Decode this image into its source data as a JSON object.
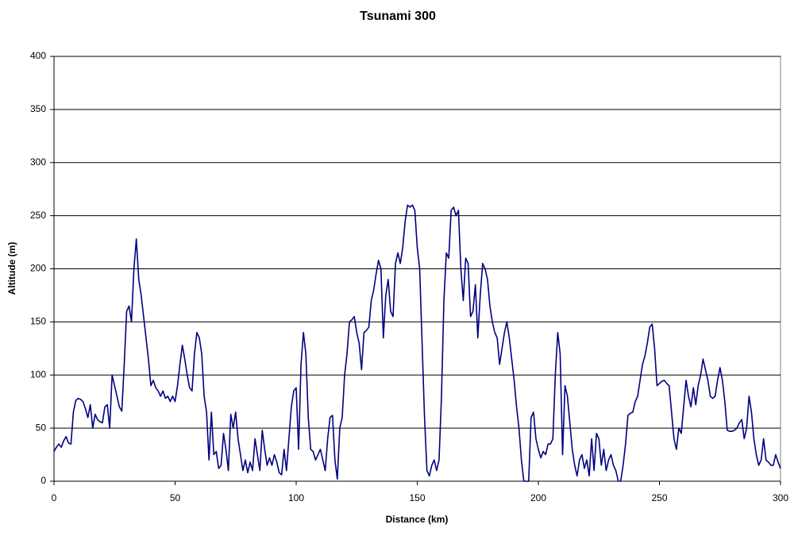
{
  "chart_data": {
    "type": "line",
    "title": "Tsunami 300",
    "x_label": "Distance (km)",
    "y_label": "Altitude (m)",
    "xlim": [
      0,
      300
    ],
    "xticks": [
      0,
      50,
      100,
      150,
      200,
      250,
      300
    ],
    "ylim": [
      0,
      400
    ],
    "yticks": [
      0,
      50,
      100,
      150,
      200,
      250,
      300,
      350,
      400
    ],
    "grid": true,
    "x": [
      0,
      1,
      2,
      3,
      4,
      5,
      6,
      7,
      8,
      9,
      10,
      11,
      12,
      13,
      14,
      15,
      16,
      17,
      18,
      19,
      20,
      21,
      22,
      23,
      24,
      25,
      26,
      27,
      28,
      29,
      30,
      31,
      32,
      33,
      34,
      35,
      36,
      37,
      38,
      39,
      40,
      41,
      42,
      43,
      44,
      45,
      46,
      47,
      48,
      49,
      50,
      51,
      52,
      53,
      54,
      55,
      56,
      57,
      58,
      59,
      60,
      61,
      62,
      63,
      64,
      65,
      66,
      67,
      68,
      69,
      70,
      71,
      72,
      73,
      74,
      75,
      76,
      77,
      78,
      79,
      80,
      81,
      82,
      83,
      84,
      85,
      86,
      87,
      88,
      89,
      90,
      91,
      92,
      93,
      94,
      95,
      96,
      97,
      98,
      99,
      100,
      101,
      102,
      103,
      104,
      105,
      106,
      107,
      108,
      109,
      110,
      111,
      112,
      113,
      114,
      115,
      116,
      117,
      118,
      119,
      120,
      121,
      122,
      123,
      124,
      125,
      126,
      127,
      128,
      129,
      130,
      131,
      132,
      133,
      134,
      135,
      136,
      137,
      138,
      139,
      140,
      141,
      142,
      143,
      144,
      145,
      146,
      147,
      148,
      149,
      150,
      151,
      152,
      153,
      154,
      155,
      156,
      157,
      158,
      159,
      160,
      161,
      162,
      163,
      164,
      165,
      166,
      167,
      168,
      169,
      170,
      171,
      172,
      173,
      174,
      175,
      176,
      177,
      178,
      179,
      180,
      181,
      182,
      183,
      184,
      185,
      186,
      187,
      188,
      189,
      190,
      191,
      192,
      193,
      194,
      195,
      196,
      197,
      198,
      199,
      200,
      201,
      202,
      203,
      204,
      205,
      206,
      207,
      208,
      209,
      210,
      211,
      212,
      213,
      214,
      215,
      216,
      217,
      218,
      219,
      220,
      221,
      222,
      223,
      224,
      225,
      226,
      227,
      228,
      229,
      230,
      231,
      232,
      233,
      234,
      235,
      236,
      237,
      238,
      239,
      240,
      241,
      242,
      243,
      244,
      245,
      246,
      247,
      248,
      249,
      250,
      251,
      252,
      253,
      254,
      255,
      256,
      257,
      258,
      259,
      260,
      261,
      262,
      263,
      264,
      265,
      266,
      267,
      268,
      269,
      270,
      271,
      272,
      273,
      274,
      275,
      276,
      277,
      278,
      279,
      280,
      281,
      282,
      283,
      284,
      285,
      286,
      287,
      288,
      289,
      290,
      291,
      292,
      293,
      294,
      295,
      296,
      297,
      298,
      299,
      300
    ],
    "series": [
      {
        "color": "#000080",
        "values": [
          28,
          32,
          35,
          32,
          38,
          42,
          36,
          35,
          65,
          76,
          78,
          77,
          75,
          68,
          60,
          72,
          50,
          63,
          58,
          56,
          55,
          70,
          72,
          50,
          100,
          90,
          80,
          70,
          66,
          110,
          160,
          165,
          150,
          200,
          228,
          190,
          175,
          155,
          135,
          115,
          90,
          95,
          88,
          85,
          80,
          85,
          78,
          80,
          75,
          80,
          75,
          90,
          110,
          128,
          115,
          100,
          88,
          85,
          120,
          140,
          135,
          120,
          80,
          65,
          20,
          65,
          25,
          28,
          12,
          15,
          45,
          30,
          10,
          63,
          50,
          65,
          40,
          25,
          10,
          20,
          8,
          18,
          10,
          40,
          25,
          10,
          48,
          30,
          15,
          22,
          15,
          25,
          18,
          8,
          6,
          30,
          10,
          40,
          70,
          85,
          88,
          30,
          110,
          140,
          120,
          60,
          30,
          28,
          20,
          25,
          30,
          20,
          10,
          40,
          60,
          62,
          20,
          2,
          50,
          60,
          100,
          120,
          150,
          152,
          155,
          140,
          130,
          105,
          140,
          142,
          145,
          170,
          180,
          195,
          208,
          200,
          135,
          175,
          190,
          160,
          155,
          205,
          215,
          205,
          220,
          245,
          260,
          258,
          260,
          255,
          220,
          200,
          130,
          60,
          10,
          5,
          15,
          20,
          10,
          20,
          80,
          170,
          215,
          210,
          255,
          258,
          250,
          255,
          200,
          170,
          210,
          205,
          155,
          160,
          185,
          135,
          175,
          205,
          200,
          190,
          165,
          150,
          140,
          135,
          110,
          125,
          140,
          150,
          135,
          115,
          95,
          70,
          50,
          20,
          0,
          0,
          0,
          60,
          65,
          40,
          30,
          22,
          28,
          25,
          35,
          35,
          40,
          100,
          140,
          120,
          25,
          90,
          80,
          55,
          30,
          15,
          5,
          20,
          25,
          12,
          20,
          5,
          40,
          10,
          45,
          40,
          15,
          30,
          10,
          20,
          25,
          15,
          10,
          0,
          0,
          15,
          35,
          62,
          64,
          65,
          75,
          80,
          95,
          110,
          118,
          130,
          145,
          148,
          125,
          90,
          92,
          94,
          95,
          92,
          90,
          65,
          40,
          30,
          50,
          45,
          70,
          95,
          80,
          70,
          88,
          72,
          90,
          100,
          115,
          105,
          95,
          80,
          78,
          80,
          95,
          107,
          95,
          75,
          48,
          47,
          47,
          48,
          50,
          55,
          58,
          40,
          50,
          80,
          65,
          40,
          25,
          15,
          20,
          40,
          20,
          18,
          15,
          15,
          25,
          18,
          12
        ]
      }
    ]
  }
}
